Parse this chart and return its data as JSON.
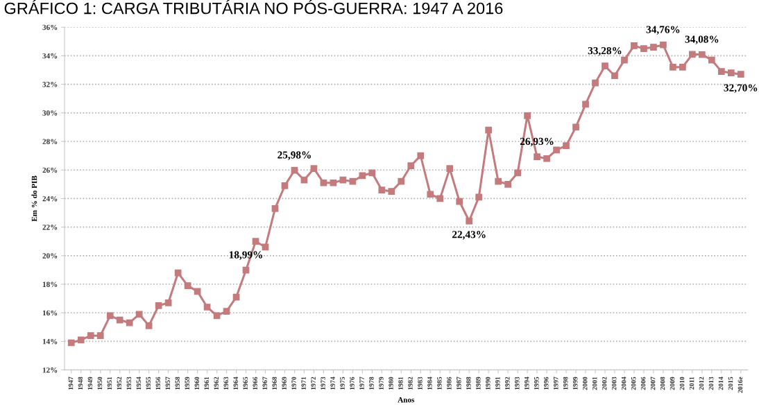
{
  "chart_data": {
    "type": "line",
    "title": "GRÁFICO 1: CARGA TRIBUTÁRIA NO PÓS-GUERRA: 1947 A 2016",
    "xlabel": "Anos",
    "ylabel": "Em % do PIB",
    "categories": [
      "1947",
      "1948",
      "1949",
      "1950",
      "1951",
      "1952",
      "1953",
      "1954",
      "1955",
      "1956",
      "1957",
      "1958",
      "1959",
      "1960",
      "1961",
      "1962",
      "1963",
      "1964",
      "1965",
      "1966",
      "1967",
      "1968",
      "1969",
      "1970",
      "1971",
      "1972",
      "1973",
      "1974",
      "1975",
      "1976",
      "1977",
      "1978",
      "1979",
      "1980",
      "1981",
      "1982",
      "1983",
      "1984",
      "1985",
      "1986",
      "1987",
      "1988",
      "1989",
      "1990",
      "1991",
      "1992",
      "1993",
      "1994",
      "1995",
      "1996",
      "1997",
      "1998",
      "1999",
      "2000",
      "2001",
      "2002",
      "2003",
      "2004",
      "2005",
      "2006",
      "2007",
      "2008",
      "2009",
      "2010",
      "2011",
      "2012",
      "2013",
      "2014",
      "2015",
      "2016e"
    ],
    "series": [
      {
        "color": "#c47b7d",
        "values": [
          13.9,
          14.1,
          14.4,
          14.4,
          15.8,
          15.5,
          15.3,
          15.9,
          15.1,
          16.5,
          16.7,
          18.8,
          17.9,
          17.5,
          16.4,
          15.8,
          16.1,
          17.1,
          18.99,
          21.0,
          20.6,
          23.3,
          24.9,
          25.98,
          25.3,
          26.1,
          25.1,
          25.1,
          25.3,
          25.2,
          25.6,
          25.8,
          24.6,
          24.5,
          25.2,
          26.3,
          27.0,
          24.3,
          24.0,
          26.1,
          23.8,
          22.43,
          24.1,
          28.8,
          25.2,
          25.0,
          25.8,
          29.8,
          26.93,
          26.8,
          27.4,
          27.7,
          29.0,
          30.6,
          32.1,
          33.28,
          32.6,
          33.7,
          34.7,
          34.5,
          34.6,
          34.76,
          33.2,
          33.2,
          34.1,
          34.08,
          33.7,
          32.9,
          32.8,
          32.7
        ],
        "value_labels": [
          null,
          null,
          null,
          null,
          null,
          null,
          null,
          null,
          null,
          null,
          null,
          null,
          null,
          null,
          null,
          null,
          null,
          null,
          "18,99%",
          null,
          null,
          null,
          null,
          "25,98%",
          null,
          null,
          null,
          null,
          null,
          null,
          null,
          null,
          null,
          null,
          null,
          null,
          null,
          null,
          null,
          null,
          null,
          "22,43%",
          null,
          null,
          null,
          null,
          null,
          null,
          "26,93%",
          null,
          null,
          null,
          null,
          null,
          null,
          "33,28%",
          null,
          null,
          null,
          null,
          null,
          "34,76%",
          null,
          null,
          null,
          "34,08%",
          null,
          null,
          null,
          "32,70%"
        ]
      }
    ],
    "ylim": [
      12,
      36
    ],
    "yticks": [
      {
        "value": 12,
        "label": "12%"
      },
      {
        "value": 14,
        "label": "14%"
      },
      {
        "value": 16,
        "label": "16%"
      },
      {
        "value": 18,
        "label": "18%"
      },
      {
        "value": 20,
        "label": "20%"
      },
      {
        "value": 22,
        "label": "22%"
      },
      {
        "value": 24,
        "label": "24%"
      },
      {
        "value": 26,
        "label": "26%"
      },
      {
        "value": 28,
        "label": "28%"
      },
      {
        "value": 30,
        "label": "30%"
      },
      {
        "value": 32,
        "label": "32%"
      },
      {
        "value": 34,
        "label": "34%"
      },
      {
        "value": 36,
        "label": "36%"
      }
    ],
    "grid": "y",
    "marker": "square",
    "line_style": "solid",
    "legend": false
  }
}
